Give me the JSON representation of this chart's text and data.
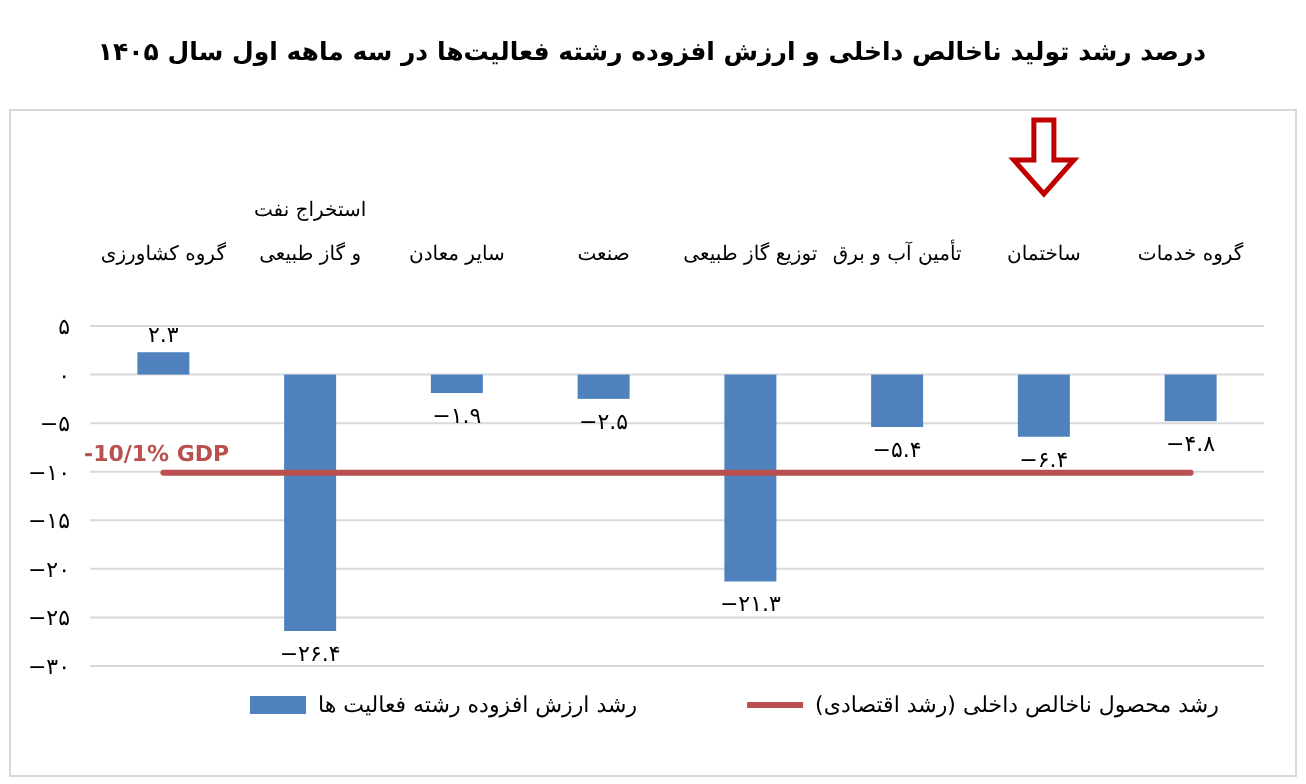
{
  "chart_data": {
    "type": "bar",
    "title": "درصد رشد تولید ناخالص داخلی و ارزش افزوده رشته فعالیت‌ها در سه ماهه اول سال ۱۴۰۵",
    "categories": [
      "گروه کشاورزی",
      "استخراج نفت و گاز طبیعی",
      "سایر معادن",
      "صنعت",
      "توزیع گاز طبیعی",
      "تأمین آب و برق",
      "ساختمان",
      "گروه خدمات"
    ],
    "series": [
      {
        "name": "رشد ارزش افزوده رشته فعالیت ها",
        "color": "#4f81bd",
        "values": [
          2.3,
          -26.4,
          -1.9,
          -2.5,
          -21.3,
          -5.4,
          -6.4,
          -4.8
        ],
        "value_labels": [
          "۲.۳",
          "−۲۶.۴",
          "−۱.۹",
          "−۲.۵",
          "−۲۱.۳",
          "−۵.۴",
          "−۶.۴",
          "−۴.۸"
        ]
      },
      {
        "name": "رشد محصول ناخالص داخلی (رشد اقتصادی)",
        "type": "line",
        "color": "#b9504f",
        "values": [
          -10.1,
          -10.1,
          -10.1,
          -10.1,
          -10.1,
          -10.1,
          -10.1,
          -10.1
        ]
      }
    ],
    "ylim": [
      -30,
      5
    ],
    "yticks": [
      {
        "value": 5,
        "label": "۵"
      },
      {
        "value": 0,
        "label": "۰"
      },
      {
        "value": -5,
        "label": "−۵"
      },
      {
        "value": -10,
        "label": "−۱۰"
      },
      {
        "value": -15,
        "label": "−۱۵"
      },
      {
        "value": -20,
        "label": "−۲۰"
      },
      {
        "value": -25,
        "label": "−۲۵"
      },
      {
        "value": -30,
        "label": "−۳۰"
      }
    ],
    "grid": "y",
    "legend": "bottom",
    "annotations": [
      "-10/1% GDP"
    ]
  }
}
